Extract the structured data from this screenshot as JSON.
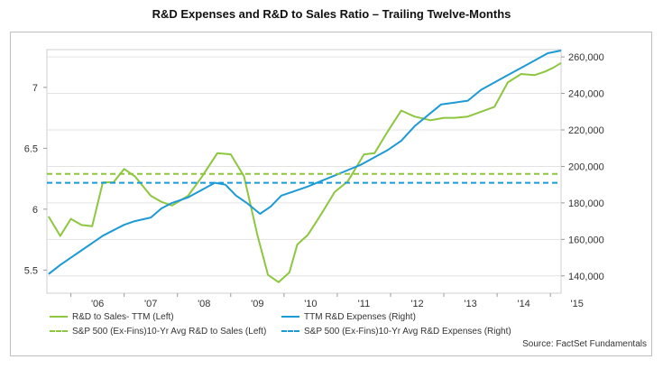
{
  "title": "R&D Expenses and R&D to Sales Ratio – Trailing Twelve-Months",
  "source": "Source: FactSet Fundamentals",
  "colors": {
    "green": "#8dc63f",
    "blue": "#1c9ad6"
  },
  "chart_data": {
    "type": "line",
    "title": "R&D Expenses and R&D to Sales Ratio – Trailing Twelve-Months",
    "x_ticks": [
      "'06",
      "'07",
      "'08",
      "'09",
      "'10",
      "'11",
      "'12",
      "'13",
      "'14",
      "'15"
    ],
    "x_range": [
      2005.55,
      2015.2
    ],
    "y_left": {
      "ticks": [
        "5.5",
        "6",
        "6.5",
        "7"
      ],
      "tick_values": [
        5.5,
        6,
        6.5,
        7
      ],
      "range": [
        5.31,
        7.31
      ]
    },
    "y_right": {
      "ticks": [
        "140,000",
        "160,000",
        "180,000",
        "200,000",
        "220,000",
        "240,000",
        "260,000"
      ],
      "tick_values": [
        140000,
        160000,
        180000,
        200000,
        220000,
        240000,
        260000
      ],
      "range": [
        130500,
        264000
      ]
    },
    "grid": "horizontal",
    "legend_position": "bottom",
    "series": [
      {
        "name": "R&D to Sales- TTM (Left)",
        "axis": "left",
        "style": "solid",
        "color": "#8dc63f",
        "x": [
          2005.58,
          2005.8,
          2006.0,
          2006.2,
          2006.4,
          2006.6,
          2006.8,
          2007.0,
          2007.2,
          2007.5,
          2007.7,
          2007.9,
          2008.2,
          2008.45,
          2008.75,
          2009.0,
          2009.25,
          2009.5,
          2009.7,
          2009.9,
          2010.1,
          2010.25,
          2010.45,
          2010.7,
          2010.95,
          2011.2,
          2011.5,
          2011.7,
          2011.95,
          2012.2,
          2012.45,
          2012.75,
          2013.0,
          2013.2,
          2013.45,
          2013.7,
          2013.95,
          2014.2,
          2014.45,
          2014.7,
          2014.9,
          2015.05,
          2015.2
        ],
        "y": [
          5.94,
          5.78,
          5.92,
          5.87,
          5.86,
          6.22,
          6.22,
          6.33,
          6.27,
          6.11,
          6.06,
          6.03,
          6.11,
          6.26,
          6.46,
          6.45,
          6.27,
          5.79,
          5.46,
          5.4,
          5.48,
          5.71,
          5.79,
          5.96,
          6.14,
          6.23,
          6.45,
          6.46,
          6.64,
          6.81,
          6.76,
          6.73,
          6.75,
          6.75,
          6.76,
          6.8,
          6.84,
          7.04,
          7.11,
          7.1,
          7.13,
          7.16,
          7.2
        ]
      },
      {
        "name": "TTM R&D Expenses (Right)",
        "axis": "right",
        "style": "solid",
        "color": "#1c9ad6",
        "x": [
          2005.58,
          2005.8,
          2006.0,
          2006.2,
          2006.4,
          2006.6,
          2006.8,
          2007.0,
          2007.2,
          2007.5,
          2007.7,
          2007.9,
          2008.2,
          2008.45,
          2008.7,
          2008.9,
          2009.1,
          2009.3,
          2009.55,
          2009.75,
          2009.95,
          2010.15,
          2010.45,
          2010.7,
          2010.95,
          2011.2,
          2011.45,
          2011.7,
          2011.95,
          2012.2,
          2012.45,
          2012.7,
          2012.95,
          2013.2,
          2013.45,
          2013.7,
          2013.95,
          2014.2,
          2014.45,
          2014.7,
          2014.95,
          2015.2
        ],
        "y": [
          141000,
          146000,
          150000,
          154000,
          158000,
          162000,
          165000,
          168000,
          170000,
          172000,
          177000,
          180000,
          183000,
          187000,
          191000,
          190000,
          184000,
          180000,
          174000,
          178000,
          184000,
          186000,
          189000,
          192000,
          195000,
          198000,
          201000,
          205000,
          209000,
          214000,
          222000,
          228000,
          234000,
          235000,
          236000,
          242000,
          246000,
          250000,
          254000,
          258000,
          262000,
          269000
        ]
      },
      {
        "name": "S&P 500 (Ex-Fins)10-Yr Avg R&D to Sales (Left)",
        "axis": "left",
        "style": "dashed",
        "color": "#8dc63f",
        "x": [
          2005.55,
          2015.2
        ],
        "y": [
          6.29,
          6.29
        ]
      },
      {
        "name": "S&P 500 (Ex-Fins)10-Yr Avg R&D Expenses (Right)",
        "axis": "right",
        "style": "dashed",
        "color": "#1c9ad6",
        "x": [
          2005.55,
          2015.2
        ],
        "y": [
          191000,
          191000
        ]
      }
    ]
  }
}
